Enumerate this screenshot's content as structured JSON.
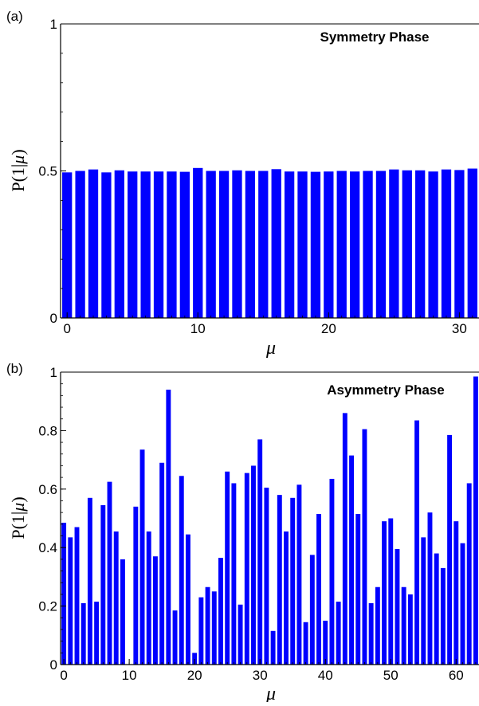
{
  "chart_data": [
    {
      "type": "bar",
      "panel_label": "(a)",
      "title": "Symmetry Phase",
      "xlabel": "μ",
      "ylabel_main": "P(1|",
      "ylabel_italic": "μ",
      "ylabel_close": ")",
      "xlim": [
        -0.5,
        31.5
      ],
      "ylim": [
        0,
        1
      ],
      "xticks": [
        0,
        10,
        20,
        30
      ],
      "yticks": [
        0,
        0.5,
        1
      ],
      "ytick_labels": [
        "0",
        "0.5",
        "1"
      ],
      "bar_color": "#0000ff",
      "x": [
        0,
        1,
        2,
        3,
        4,
        5,
        6,
        7,
        8,
        9,
        10,
        11,
        12,
        13,
        14,
        15,
        16,
        17,
        18,
        19,
        20,
        21,
        22,
        23,
        24,
        25,
        26,
        27,
        28,
        29,
        30,
        31
      ],
      "values": [
        0.495,
        0.5,
        0.505,
        0.495,
        0.502,
        0.498,
        0.498,
        0.498,
        0.498,
        0.497,
        0.51,
        0.5,
        0.5,
        0.502,
        0.5,
        0.5,
        0.506,
        0.498,
        0.498,
        0.497,
        0.498,
        0.5,
        0.498,
        0.5,
        0.5,
        0.505,
        0.502,
        0.502,
        0.498,
        0.505,
        0.503,
        0.508
      ]
    },
    {
      "type": "bar",
      "panel_label": "(b)",
      "title": "Asymmetry Phase",
      "xlabel": "μ",
      "ylabel_main": "P(1|",
      "ylabel_italic": "μ",
      "ylabel_close": ")",
      "xlim": [
        -0.5,
        63.5
      ],
      "ylim": [
        0,
        1
      ],
      "xticks": [
        0,
        10,
        20,
        30,
        40,
        50,
        60
      ],
      "yticks": [
        0,
        0.2,
        0.4,
        0.6,
        0.8,
        1
      ],
      "ytick_labels": [
        "0",
        "0.2",
        "0.4",
        "0.6",
        "0.8",
        "1"
      ],
      "bar_color": "#0000ff",
      "x": [
        0,
        1,
        2,
        3,
        4,
        5,
        6,
        7,
        8,
        9,
        10,
        11,
        12,
        13,
        14,
        15,
        16,
        17,
        18,
        19,
        20,
        21,
        22,
        23,
        24,
        25,
        26,
        27,
        28,
        29,
        30,
        31,
        32,
        33,
        34,
        35,
        36,
        37,
        38,
        39,
        40,
        41,
        42,
        43,
        44,
        45,
        46,
        47,
        48,
        49,
        50,
        51,
        52,
        53,
        54,
        55,
        56,
        57,
        58,
        59,
        60,
        61,
        62,
        63
      ],
      "values": [
        0.485,
        0.435,
        0.47,
        0.21,
        0.57,
        0.215,
        0.545,
        0.625,
        0.455,
        0.36,
        0.0,
        0.54,
        0.735,
        0.455,
        0.37,
        0.69,
        0.94,
        0.185,
        0.645,
        0.445,
        0.04,
        0.23,
        0.265,
        0.25,
        0.365,
        0.66,
        0.62,
        0.205,
        0.655,
        0.68,
        0.77,
        0.605,
        0.115,
        0.58,
        0.455,
        0.57,
        0.615,
        0.145,
        0.375,
        0.515,
        0.15,
        0.635,
        0.215,
        0.86,
        0.715,
        0.515,
        0.805,
        0.21,
        0.265,
        0.49,
        0.5,
        0.395,
        0.265,
        0.24,
        0.835,
        0.435,
        0.52,
        0.38,
        0.33,
        0.785,
        0.49,
        0.415,
        0.62,
        0.985
      ]
    }
  ]
}
